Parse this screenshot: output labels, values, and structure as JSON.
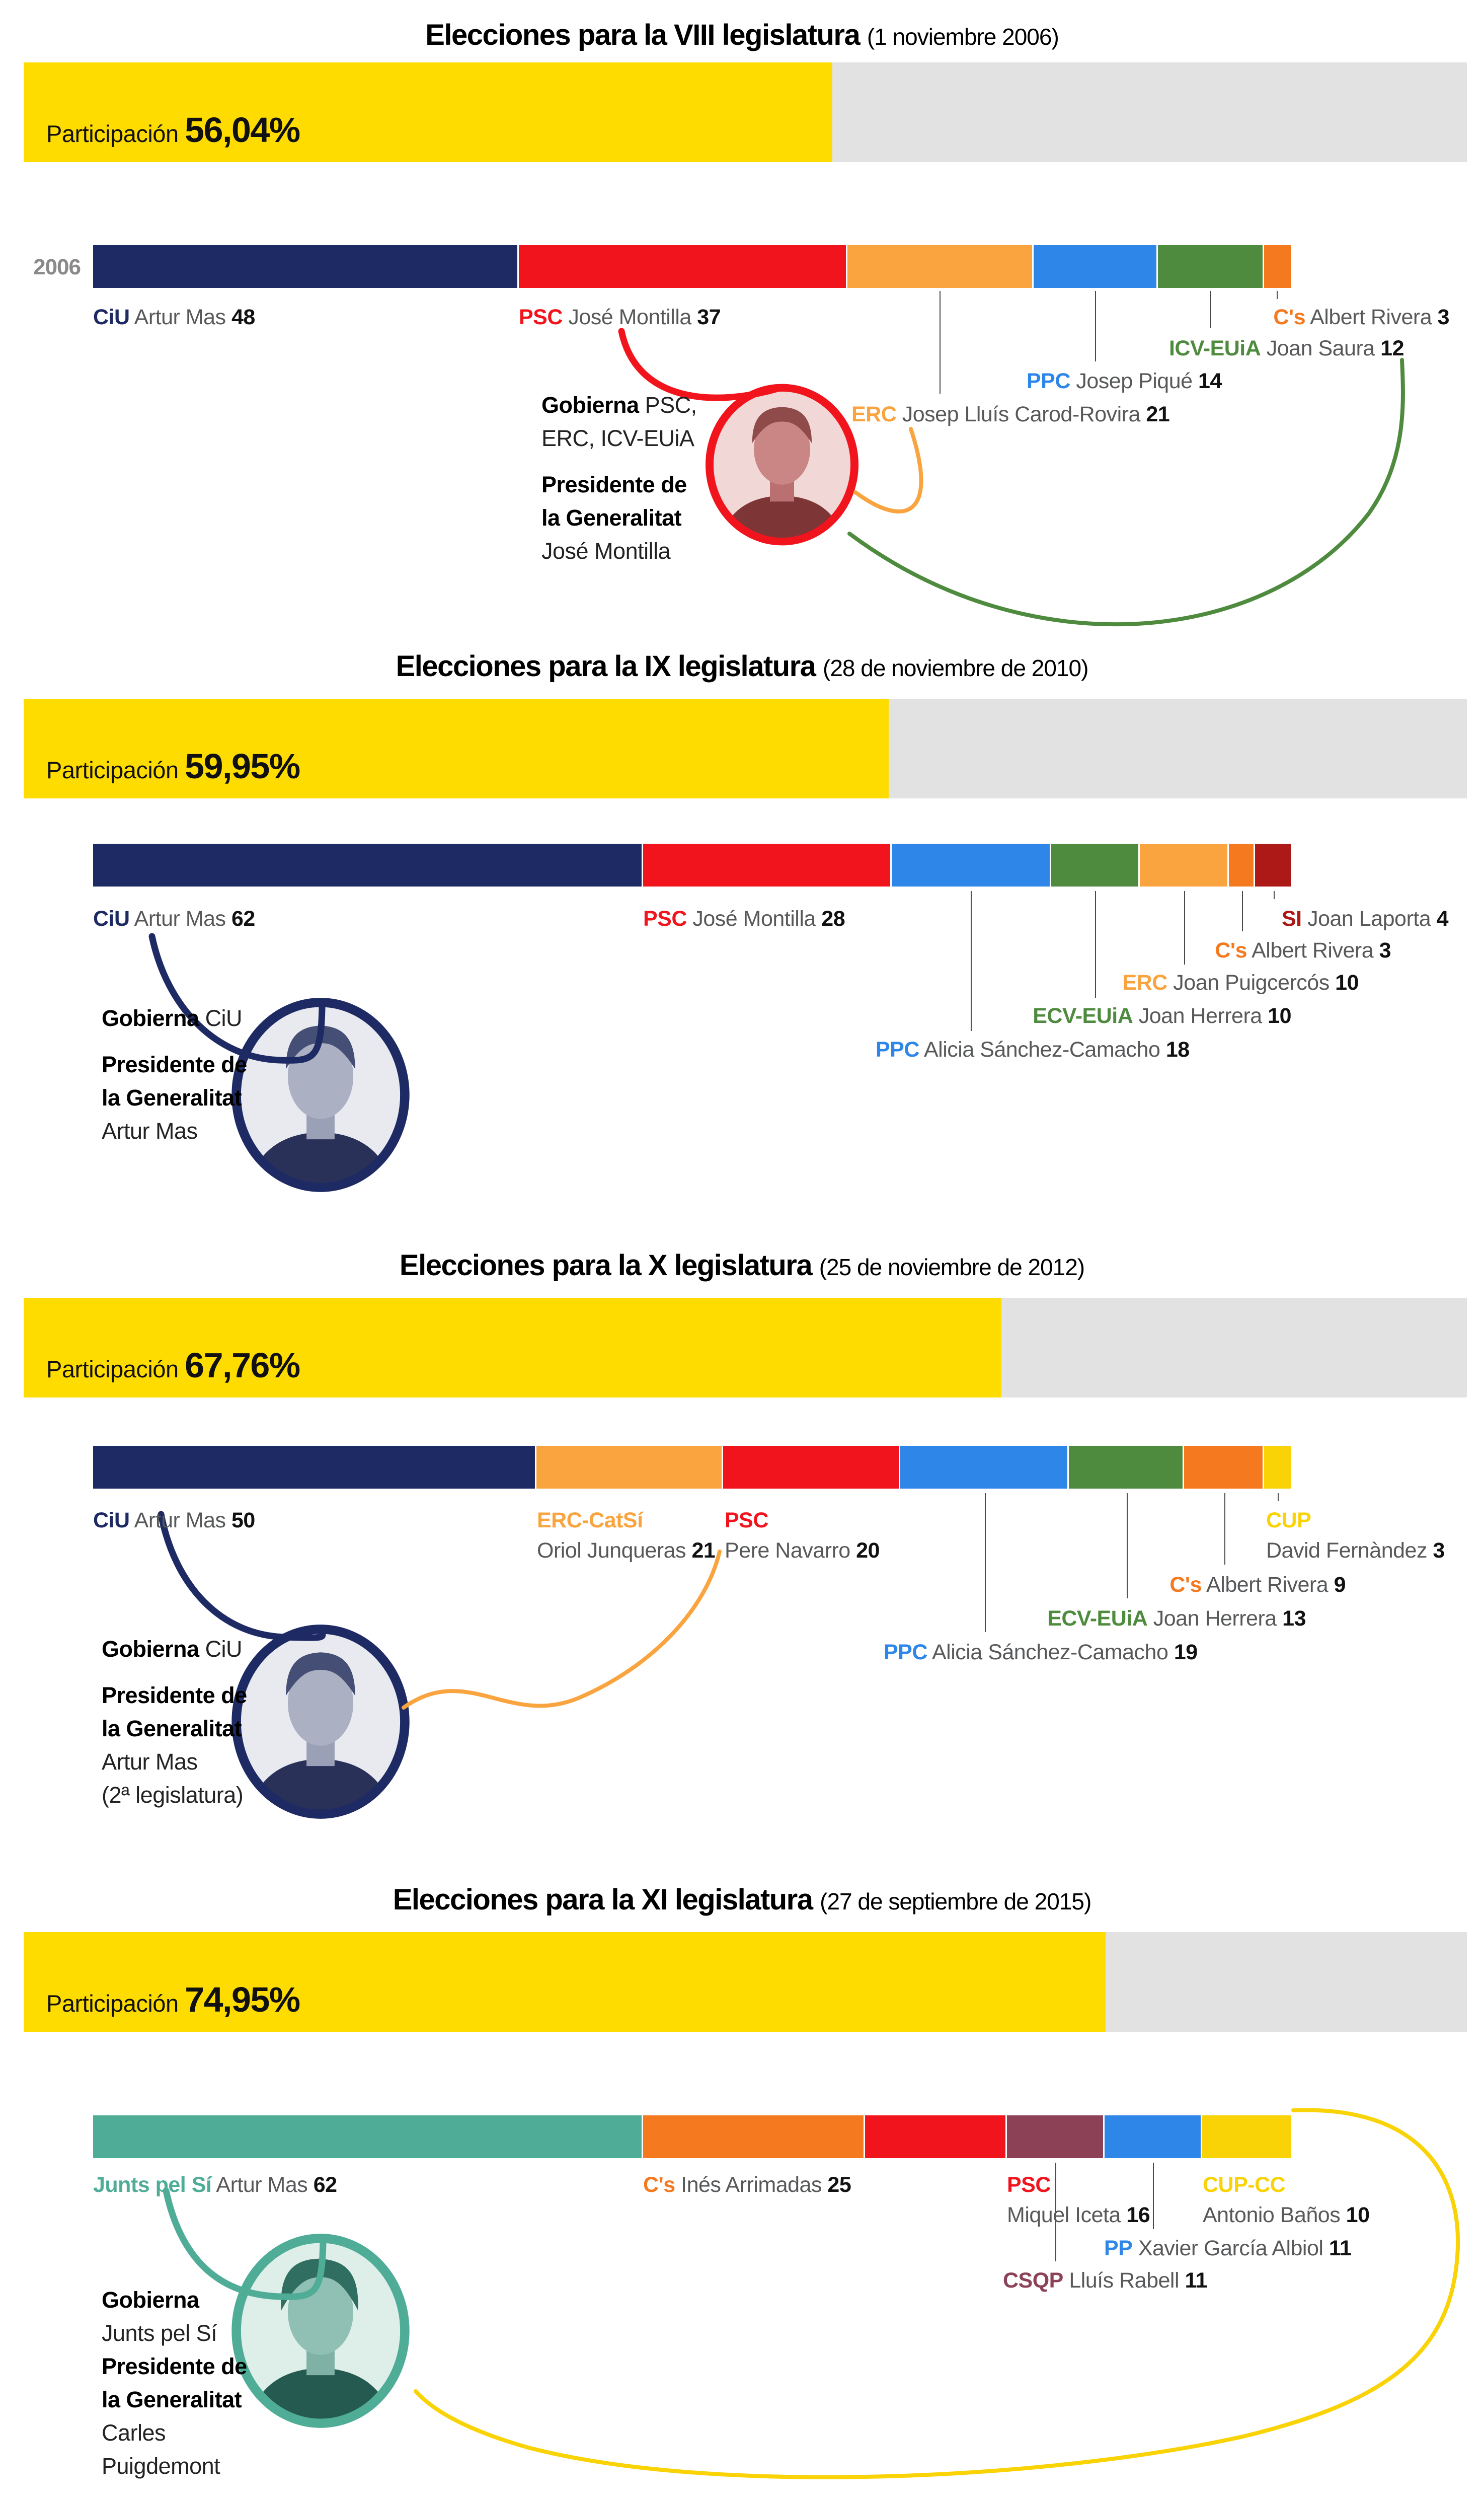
{
  "colors": {
    "participation_fill": "#FFDC00",
    "participation_track": "#E2E2E2",
    "year_label": "#8A8A8A",
    "leader_line": "#4A4A4A",
    "name_text": "#57585A"
  },
  "sections": [
    {
      "title": "Elecciones para la VIII legislatura",
      "date": "(1 noviembre 2006)",
      "year_axis_label": "2006",
      "participation": {
        "label": "Participación",
        "value": "56,04%",
        "pct": 56.04
      },
      "total_seats": 135,
      "parties": [
        {
          "party": "CiU",
          "person": "Artur Mas",
          "seats": 48,
          "color": "#1E2A63"
        },
        {
          "party": "PSC",
          "person": "José Montilla",
          "seats": 37,
          "color": "#F2141D"
        },
        {
          "party": "ERC",
          "person": "Josep Lluís Carod-Rovira",
          "seats": 21,
          "color": "#F9A43F"
        },
        {
          "party": "PPC",
          "person": "Josep Piqué",
          "seats": 14,
          "color": "#2E86E9"
        },
        {
          "party": "ICV-EUiA",
          "person": "Joan Saura",
          "seats": 12,
          "color": "#4F8B3E"
        },
        {
          "party": "C's",
          "person": "Albert Rivera",
          "seats": 3,
          "color": "#F5791F"
        }
      ],
      "gobierna": {
        "label": "Gobierna",
        "coalition": "PSC,",
        "coalition2": "ERC, ICV-EUiA",
        "office1": "Presidente de",
        "office2": "la Generalitat",
        "president1": "José Montilla"
      }
    },
    {
      "title": "Elecciones para la IX legislatura",
      "date": "(28 de noviembre de 2010)",
      "participation": {
        "label": "Participación",
        "value": "59,95%",
        "pct": 59.95
      },
      "total_seats": 135,
      "parties": [
        {
          "party": "CiU",
          "person": "Artur Mas",
          "seats": 62,
          "color": "#1E2A63"
        },
        {
          "party": "PSC",
          "person": "José Montilla",
          "seats": 28,
          "color": "#F2141D"
        },
        {
          "party": "PPC",
          "person": "Alicia Sánchez-Camacho",
          "seats": 18,
          "color": "#2E86E9"
        },
        {
          "party": "ECV-EUiA",
          "person": "Joan Herrera",
          "seats": 10,
          "color": "#4F8B3E"
        },
        {
          "party": "ERC",
          "person": "Joan Puigcercós",
          "seats": 10,
          "color": "#F9A43F"
        },
        {
          "party": "C's",
          "person": "Albert Rivera",
          "seats": 3,
          "color": "#F5791F"
        },
        {
          "party": "SI",
          "person": "Joan Laporta",
          "seats": 4,
          "color": "#AC1917"
        }
      ],
      "gobierna": {
        "label": "Gobierna",
        "coalition": "CiU",
        "office1": "Presidente de",
        "office2": "la Generalitat",
        "president1": "Artur Mas"
      }
    },
    {
      "title": "Elecciones para la X legislatura",
      "date": "(25 de noviembre de 2012)",
      "participation": {
        "label": "Participación",
        "value": "67,76%",
        "pct": 67.76
      },
      "total_seats": 135,
      "parties": [
        {
          "party": "CiU",
          "person": "Artur Mas",
          "seats": 50,
          "color": "#1E2A63"
        },
        {
          "party": "ERC-CatSí",
          "person": "Oriol Junqueras",
          "seats": 21,
          "color": "#F9A43F"
        },
        {
          "party": "PSC",
          "person": "Pere Navarro",
          "seats": 20,
          "color": "#F2141D"
        },
        {
          "party": "PPC",
          "person": "Alicia Sánchez-Camacho",
          "seats": 19,
          "color": "#2E86E9"
        },
        {
          "party": "ECV-EUiA",
          "person": "Joan Herrera",
          "seats": 13,
          "color": "#4F8B3E"
        },
        {
          "party": "C's",
          "person": "Albert Rivera",
          "seats": 9,
          "color": "#F5791F"
        },
        {
          "party": "CUP",
          "person": "David Fernàndez",
          "seats": 3,
          "color": "#F9D305"
        }
      ],
      "gobierna": {
        "label": "Gobierna",
        "coalition": "CiU",
        "office1": "Presidente de",
        "office2": "la Generalitat",
        "president1": "Artur Mas",
        "note": "(2ª legislatura)"
      }
    },
    {
      "title": "Elecciones para la XI legislatura",
      "date": "(27 de septiembre de 2015)",
      "participation": {
        "label": "Participación",
        "value": "74,95%",
        "pct": 74.95
      },
      "total_seats": 135,
      "parties": [
        {
          "party": "Junts pel Sí",
          "person": "Artur Mas",
          "seats": 62,
          "color": "#4FAD97"
        },
        {
          "party": "C's",
          "person": "Inés Arrimadas",
          "seats": 25,
          "color": "#F5791F"
        },
        {
          "party": "PSC",
          "person": "Miquel Iceta",
          "seats": 16,
          "color": "#F2141D"
        },
        {
          "party": "CSQP",
          "person": "Lluís Rabell",
          "seats": 11,
          "color": "#8C4156"
        },
        {
          "party": "PP",
          "person": "Xavier García Albiol",
          "seats": 11,
          "color": "#2E86E9"
        },
        {
          "party": "CUP-CC",
          "person": "Antonio Baños",
          "seats": 10,
          "color": "#F9D305"
        }
      ],
      "gobierna": {
        "label": "Gobierna",
        "coalition2": "Junts pel Sí",
        "office1": "Presidente de",
        "office2": "la Generalitat",
        "president1": "Carles",
        "president2": "Puigdemont"
      }
    }
  ],
  "chart_data": [
    {
      "type": "bar",
      "stacked": true,
      "title": "Elecciones para la VIII legislatura",
      "subtitle": "(1 noviembre 2006)",
      "participation_pct": 56.04,
      "total_seats": 135,
      "categories": [
        "CiU",
        "PSC",
        "ERC",
        "PPC",
        "ICV-EUiA",
        "C's"
      ],
      "values": [
        48,
        37,
        21,
        14,
        12,
        3
      ],
      "leaders": [
        "Artur Mas",
        "José Montilla",
        "Josep Lluís Carod-Rovira",
        "Josep Piqué",
        "Joan Saura",
        "Albert Rivera"
      ],
      "colors": [
        "#1E2A63",
        "#F2141D",
        "#F9A43F",
        "#2E86E9",
        "#4F8B3E",
        "#F5791F"
      ],
      "governing": "PSC, ERC, ICV-EUiA",
      "president": "José Montilla"
    },
    {
      "type": "bar",
      "stacked": true,
      "title": "Elecciones para la IX legislatura",
      "subtitle": "(28 de noviembre de 2010)",
      "participation_pct": 59.95,
      "total_seats": 135,
      "categories": [
        "CiU",
        "PSC",
        "PPC",
        "ECV-EUiA",
        "ERC",
        "C's",
        "SI"
      ],
      "values": [
        62,
        28,
        18,
        10,
        10,
        3,
        4
      ],
      "leaders": [
        "Artur Mas",
        "José Montilla",
        "Alicia Sánchez-Camacho",
        "Joan Herrera",
        "Joan Puigcercós",
        "Albert Rivera",
        "Joan Laporta"
      ],
      "colors": [
        "#1E2A63",
        "#F2141D",
        "#2E86E9",
        "#4F8B3E",
        "#F9A43F",
        "#F5791F",
        "#AC1917"
      ],
      "governing": "CiU",
      "president": "Artur Mas"
    },
    {
      "type": "bar",
      "stacked": true,
      "title": "Elecciones para la X legislatura",
      "subtitle": "(25 de noviembre de 2012)",
      "participation_pct": 67.76,
      "total_seats": 135,
      "categories": [
        "CiU",
        "ERC-CatSí",
        "PSC",
        "PPC",
        "ECV-EUiA",
        "C's",
        "CUP"
      ],
      "values": [
        50,
        21,
        20,
        19,
        13,
        9,
        3
      ],
      "leaders": [
        "Artur Mas",
        "Oriol Junqueras",
        "Pere Navarro",
        "Alicia Sánchez-Camacho",
        "Joan Herrera",
        "Albert Rivera",
        "David Fernàndez"
      ],
      "colors": [
        "#1E2A63",
        "#F9A43F",
        "#F2141D",
        "#2E86E9",
        "#4F8B3E",
        "#F5791F",
        "#F9D305"
      ],
      "governing": "CiU",
      "president": "Artur Mas (2ª legislatura)"
    },
    {
      "type": "bar",
      "stacked": true,
      "title": "Elecciones para la XI legislatura",
      "subtitle": "(27 de septiembre de 2015)",
      "participation_pct": 74.95,
      "total_seats": 135,
      "categories": [
        "Junts pel Sí",
        "C's",
        "PSC",
        "CSQP",
        "PP",
        "CUP-CC"
      ],
      "values": [
        62,
        25,
        16,
        11,
        11,
        10
      ],
      "leaders": [
        "Artur Mas",
        "Inés Arrimadas",
        "Miquel Iceta",
        "Lluís Rabell",
        "Xavier García Albiol",
        "Antonio Baños"
      ],
      "colors": [
        "#4FAD97",
        "#F5791F",
        "#F2141D",
        "#8C4156",
        "#2E86E9",
        "#F9D305"
      ],
      "governing": "Junts pel Sí",
      "president": "Carles Puigdemont"
    }
  ]
}
